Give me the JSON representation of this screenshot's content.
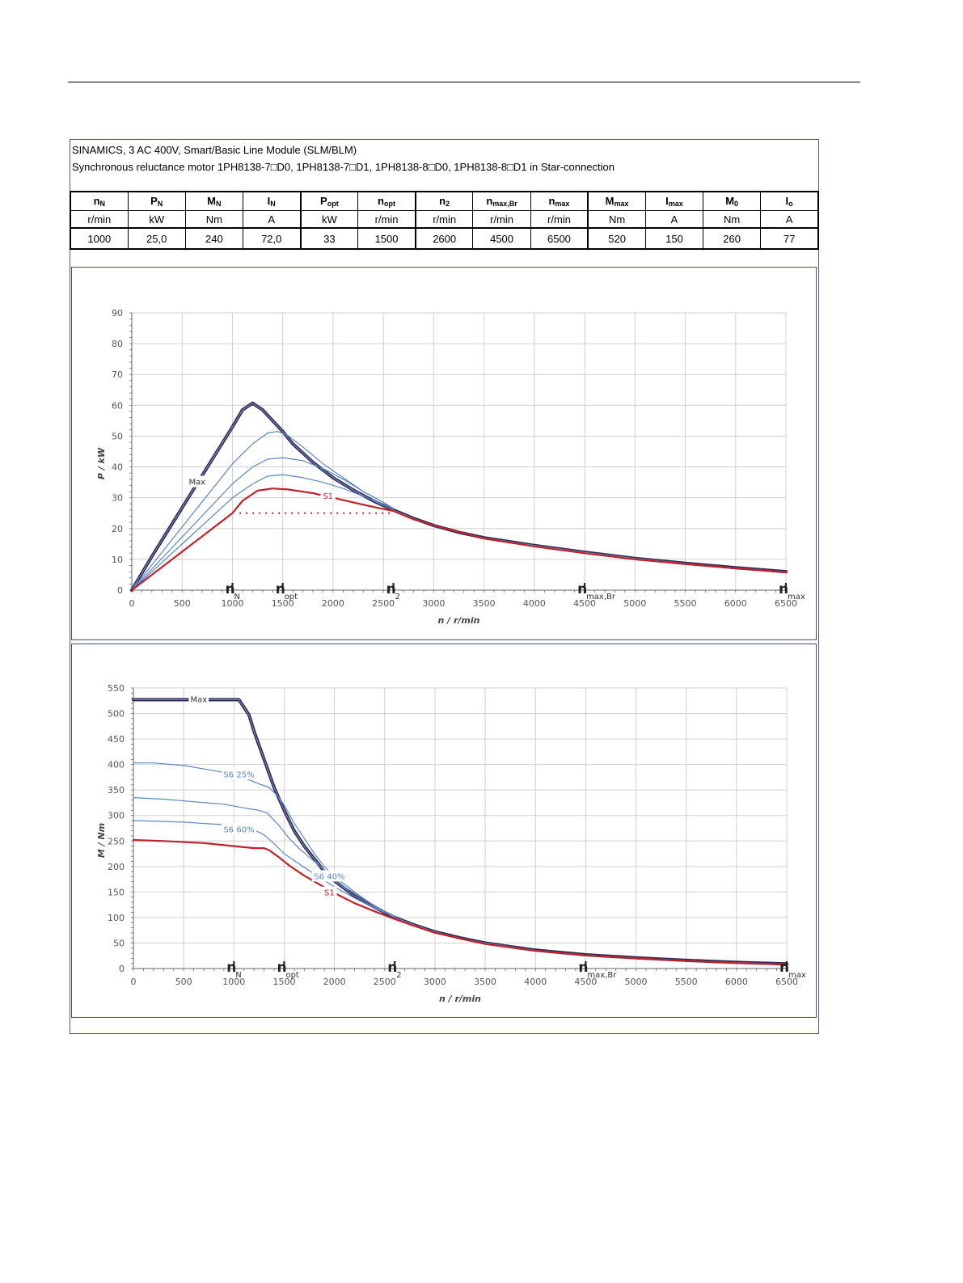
{
  "header": {
    "line1": "SINAMICS, 3 AC 400V, Smart/Basic Line Module (SLM/BLM)",
    "line2": "Synchronous reluctance motor  1PH8138-7□D0,  1PH8138-7□D1,  1PH8138-8□D0,  1PH8138-8□D1   in Star-connection"
  },
  "spec_table": {
    "symbols": [
      {
        "main": "n",
        "sub": "N"
      },
      {
        "main": "P",
        "sub": "N"
      },
      {
        "main": "M",
        "sub": "N"
      },
      {
        "main": "I",
        "sub": "N"
      },
      {
        "main": "P",
        "sub": "opt"
      },
      {
        "main": "n",
        "sub": "opt"
      },
      {
        "main": "n",
        "sub": "2"
      },
      {
        "main": "n",
        "sub": "max,Br"
      },
      {
        "main": "n",
        "sub": "max"
      },
      {
        "main": "M",
        "sub": "max"
      },
      {
        "main": "I",
        "sub": "max"
      },
      {
        "main": "M",
        "sub": "0"
      },
      {
        "main": "I",
        "sub": "o"
      }
    ],
    "units": [
      "r/min",
      "kW",
      "Nm",
      "A",
      "kW",
      "r/min",
      "r/min",
      "r/min",
      "r/min",
      "Nm",
      "A",
      "Nm",
      "A"
    ],
    "values": [
      "1000",
      "25,0",
      "240",
      "72,0",
      "33",
      "1500",
      "2600",
      "4500",
      "6500",
      "520",
      "150",
      "260",
      "77"
    ]
  },
  "colors": {
    "max": "#2b2d57",
    "s1": "#c0222c",
    "s6": "#5b88c0",
    "grid": "#d0d0d0",
    "frame": "#4a4f78"
  },
  "chart_data": [
    {
      "type": "line",
      "xlabel": "n / r/min",
      "ylabel": "P / kW",
      "xlim": [
        0,
        6500
      ],
      "ylim": [
        0,
        90
      ],
      "xticks": [
        0,
        500,
        1000,
        1500,
        2000,
        2500,
        3000,
        3500,
        4000,
        4500,
        5000,
        5500,
        6000,
        6500
      ],
      "yticks": [
        0,
        10,
        20,
        30,
        40,
        50,
        60,
        70,
        80,
        90
      ],
      "grid": true,
      "markers": [
        {
          "x": 1000,
          "main": "n",
          "sub": "N"
        },
        {
          "x": 1500,
          "main": "n",
          "sub": "opt"
        },
        {
          "x": 2600,
          "main": "n",
          "sub": "2"
        },
        {
          "x": 4500,
          "main": "n",
          "sub": "max,Br"
        },
        {
          "x": 6500,
          "main": "n",
          "sub": "max"
        }
      ],
      "reference_line": {
        "y": 25,
        "x": [
          1070,
          2600
        ]
      },
      "series": [
        {
          "name": "Max",
          "style": "max",
          "label_x": 650,
          "label_y": 35,
          "points": [
            [
              0,
              0
            ],
            [
              200,
              11
            ],
            [
              400,
              21.5
            ],
            [
              600,
              32
            ],
            [
              800,
              42.5
            ],
            [
              1000,
              53
            ],
            [
              1100,
              58.5
            ],
            [
              1200,
              60.7
            ],
            [
              1300,
              58.5
            ],
            [
              1400,
              55
            ],
            [
              1500,
              51.5
            ],
            [
              1600,
              47.5
            ],
            [
              1800,
              41.5
            ],
            [
              2000,
              36.5
            ],
            [
              2200,
              32.5
            ],
            [
              2400,
              29
            ],
            [
              2600,
              26
            ],
            [
              2800,
              23.3
            ],
            [
              3000,
              21
            ],
            [
              3250,
              18.8
            ],
            [
              3500,
              17
            ],
            [
              4000,
              14.5
            ],
            [
              4500,
              12.3
            ],
            [
              5000,
              10.3
            ],
            [
              5500,
              8.7
            ],
            [
              6000,
              7.3
            ],
            [
              6500,
              6
            ]
          ]
        },
        {
          "name": "",
          "style": "s6",
          "points": [
            [
              0,
              0
            ],
            [
              1000,
              41
            ],
            [
              1200,
              47.5
            ],
            [
              1350,
              51
            ],
            [
              1450,
              51.5
            ],
            [
              1550,
              50.2
            ],
            [
              1700,
              46.5
            ],
            [
              1900,
              41
            ],
            [
              2100,
              36.5
            ],
            [
              2300,
              32
            ],
            [
              2500,
              28.5
            ],
            [
              2600,
              26.5
            ]
          ]
        },
        {
          "name": "",
          "style": "s6",
          "points": [
            [
              0,
              0
            ],
            [
              1000,
              34.5
            ],
            [
              1200,
              40
            ],
            [
              1350,
              42.5
            ],
            [
              1500,
              43
            ],
            [
              1700,
              42
            ],
            [
              1900,
              39.5
            ],
            [
              2100,
              36
            ],
            [
              2300,
              32
            ],
            [
              2500,
              28.5
            ],
            [
              2600,
              26.5
            ]
          ]
        },
        {
          "name": "",
          "style": "s6",
          "points": [
            [
              0,
              0
            ],
            [
              1000,
              30
            ],
            [
              1200,
              34.5
            ],
            [
              1350,
              37
            ],
            [
              1500,
              37.5
            ],
            [
              1700,
              36.5
            ],
            [
              1900,
              35
            ],
            [
              2100,
              33
            ],
            [
              2300,
              30.5
            ],
            [
              2500,
              28
            ],
            [
              2600,
              26.5
            ]
          ]
        },
        {
          "name": "S1",
          "style": "s1",
          "label_x": 1950,
          "label_y": 30.5,
          "points": [
            [
              0,
              0
            ],
            [
              1000,
              25
            ],
            [
              1100,
              29
            ],
            [
              1250,
              32.3
            ],
            [
              1400,
              33
            ],
            [
              1550,
              32.7
            ],
            [
              1800,
              31.5
            ],
            [
              2000,
              30
            ],
            [
              2200,
              28.5
            ],
            [
              2400,
              27
            ],
            [
              2600,
              25.7
            ],
            [
              2800,
              23
            ],
            [
              3000,
              21
            ],
            [
              3500,
              16.8
            ],
            [
              4000,
              14.2
            ],
            [
              4500,
              12
            ],
            [
              5000,
              10
            ],
            [
              5500,
              8.5
            ],
            [
              6000,
              7.1
            ],
            [
              6500,
              5.8
            ]
          ]
        }
      ]
    },
    {
      "type": "line",
      "xlabel": "n / r/min",
      "ylabel": "M / Nm",
      "xlim": [
        0,
        6500
      ],
      "ylim": [
        0,
        550
      ],
      "xticks": [
        0,
        500,
        1000,
        1500,
        2000,
        2500,
        3000,
        3500,
        4000,
        4500,
        5000,
        5500,
        6000,
        6500
      ],
      "yticks": [
        0,
        50,
        100,
        150,
        200,
        250,
        300,
        350,
        400,
        450,
        500,
        550
      ],
      "grid": true,
      "markers": [
        {
          "x": 1000,
          "main": "n",
          "sub": "N"
        },
        {
          "x": 1500,
          "main": "n",
          "sub": "opt"
        },
        {
          "x": 2600,
          "main": "n",
          "sub": "2"
        },
        {
          "x": 4500,
          "main": "n",
          "sub": "max,Br"
        },
        {
          "x": 6500,
          "main": "n",
          "sub": "max"
        }
      ],
      "series": [
        {
          "name": "Max",
          "style": "max",
          "label_x": 650,
          "label_y": 527,
          "points": [
            [
              0,
              527
            ],
            [
              1050,
              527
            ],
            [
              1150,
              497
            ],
            [
              1200,
              465
            ],
            [
              1300,
              410
            ],
            [
              1400,
              355
            ],
            [
              1500,
              310
            ],
            [
              1600,
              270
            ],
            [
              1700,
              240
            ],
            [
              1800,
              215
            ],
            [
              1900,
              190
            ],
            [
              2000,
              172
            ],
            [
              2200,
              142
            ],
            [
              2400,
              120
            ],
            [
              2600,
              100
            ],
            [
              2800,
              85
            ],
            [
              3000,
              72
            ],
            [
              3250,
              60
            ],
            [
              3500,
              50
            ],
            [
              4000,
              36
            ],
            [
              4500,
              27
            ],
            [
              5000,
              21
            ],
            [
              5500,
              16
            ],
            [
              6000,
              12
            ],
            [
              6500,
              9
            ]
          ]
        },
        {
          "name": "S6 25%",
          "style": "s6",
          "label_x": 1050,
          "label_y": 380,
          "points": [
            [
              0,
              403
            ],
            [
              200,
              403
            ],
            [
              500,
              398
            ],
            [
              800,
              388
            ],
            [
              1000,
              380
            ],
            [
              1150,
              370
            ],
            [
              1250,
              362
            ],
            [
              1350,
              355
            ],
            [
              1450,
              335
            ],
            [
              1500,
              320
            ],
            [
              1600,
              285
            ],
            [
              1700,
              255
            ],
            [
              1800,
              225
            ],
            [
              1900,
              200
            ],
            [
              2000,
              180
            ],
            [
              2200,
              150
            ],
            [
              2400,
              122
            ],
            [
              2600,
              102
            ]
          ]
        },
        {
          "name": "",
          "style": "s6",
          "points": [
            [
              0,
              335
            ],
            [
              300,
              332
            ],
            [
              600,
              327
            ],
            [
              900,
              322
            ],
            [
              1100,
              315
            ],
            [
              1250,
              310
            ],
            [
              1330,
              305
            ],
            [
              1450,
              280
            ],
            [
              1550,
              255
            ],
            [
              1650,
              235
            ],
            [
              1800,
              210
            ],
            [
              1950,
              185
            ],
            [
              2100,
              160
            ],
            [
              2300,
              135
            ],
            [
              2500,
              112
            ],
            [
              2600,
              102
            ]
          ]
        },
        {
          "name": "S6 60%",
          "style": "s6",
          "label_x": 1050,
          "label_y": 272,
          "points": [
            [
              0,
              290
            ],
            [
              500,
              287
            ],
            [
              900,
              282
            ],
            [
              1100,
              278
            ],
            [
              1200,
              272
            ],
            [
              1300,
              262
            ],
            [
              1400,
              245
            ],
            [
              1500,
              225
            ],
            [
              1650,
              205
            ],
            [
              1800,
              185
            ],
            [
              2000,
              160
            ],
            [
              2200,
              138
            ],
            [
              2400,
              118
            ],
            [
              2600,
              102
            ]
          ]
        },
        {
          "name": "S6 40%",
          "style": "s6",
          "label_x": 1950,
          "label_y": 180,
          "points": []
        },
        {
          "name": "S1",
          "style": "s1",
          "label_x": 1950,
          "label_y": 148,
          "points": [
            [
              0,
              252
            ],
            [
              300,
              250
            ],
            [
              700,
              246
            ],
            [
              1000,
              240
            ],
            [
              1200,
              236
            ],
            [
              1300,
              236
            ],
            [
              1350,
              232
            ],
            [
              1450,
              218
            ],
            [
              1550,
              202
            ],
            [
              1700,
              182
            ],
            [
              1850,
              165
            ],
            [
              2000,
              148
            ],
            [
              2200,
              128
            ],
            [
              2400,
              112
            ],
            [
              2600,
              97
            ],
            [
              2800,
              83
            ],
            [
              3000,
              70
            ],
            [
              3500,
              48
            ],
            [
              4000,
              35
            ],
            [
              4500,
              26
            ],
            [
              5000,
              20
            ],
            [
              5500,
              15
            ],
            [
              6000,
              11
            ],
            [
              6500,
              8
            ]
          ]
        }
      ]
    }
  ]
}
